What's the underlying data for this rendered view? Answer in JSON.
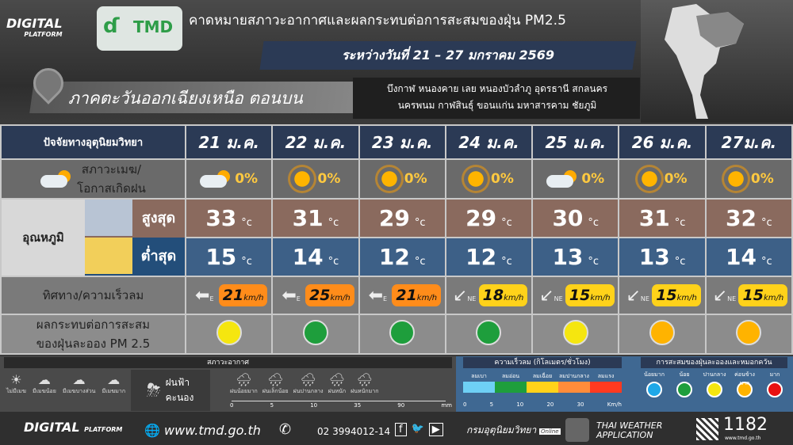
{
  "header": {
    "brand": "DIGITAL",
    "brand_sub": "PLATFORM",
    "logo_text": "TMD",
    "title": "คาดหมายสภาวะอากาศและผลกระทบต่อการสะสมของฝุ่น PM2.5",
    "date_range": "ระหว่างวันที่ 21 – 27 มกราคม 2569",
    "region": "ภาคตะวันออกเฉียงเหนือ ตอนบน",
    "provinces_line1": "บึงกาฬ หนองคาย เลย หนองบัวลำภู อุดรธานี สกลนคร",
    "provinces_line2": "นครพนม กาฬสินธุ์ ขอนแก่น มหาสารคาม  ชัยภูมิ"
  },
  "table": {
    "factor_label": "ปัจจัยทางอุตุนิยมวิทยา",
    "sky_label_1": "สภาวะเมฆ/",
    "sky_label_2": "โอกาสเกิดฝน",
    "temp_label": "อุณหภูมิ",
    "max_label": "สูงสุด",
    "min_label": "ต่ำสุด",
    "wind_label": "ทิศทาง/ความเร็วลม",
    "pm_label_1": "ผลกระทบต่อการสะสม",
    "pm_label_2": "ของฝุ่นละออง PM 2.5",
    "temp_unit": "°c",
    "wind_unit": "km/h",
    "days": [
      {
        "date": "21 ม.ค.",
        "sky": "partly-cloudy-icon",
        "rain": "0%",
        "max": "33",
        "min": "15",
        "wind_dir": "E",
        "wind_speed": "21",
        "wind_color": "#ff8c1a",
        "pm_color": "#f5e60f"
      },
      {
        "date": "22 ม.ค.",
        "sky": "sun-icon",
        "rain": "0%",
        "max": "31",
        "min": "14",
        "wind_dir": "E",
        "wind_speed": "25",
        "wind_color": "#ff8c1a",
        "pm_color": "#1e9e3c"
      },
      {
        "date": "23 ม.ค.",
        "sky": "sun-icon",
        "rain": "0%",
        "max": "29",
        "min": "12",
        "wind_dir": "E",
        "wind_speed": "21",
        "wind_color": "#ff8c1a",
        "pm_color": "#1e9e3c"
      },
      {
        "date": "24 ม.ค.",
        "sky": "sun-icon",
        "rain": "0%",
        "max": "29",
        "min": "12",
        "wind_dir": "NE",
        "wind_speed": "18",
        "wind_color": "#ffd21a",
        "pm_color": "#1e9e3c"
      },
      {
        "date": "25 ม.ค.",
        "sky": "partly-cloudy-icon",
        "rain": "0%",
        "max": "30",
        "min": "13",
        "wind_dir": "NE",
        "wind_speed": "15",
        "wind_color": "#ffd21a",
        "pm_color": "#f5e60f"
      },
      {
        "date": "26 ม.ค.",
        "sky": "sun-icon",
        "rain": "0%",
        "max": "31",
        "min": "13",
        "wind_dir": "NE",
        "wind_speed": "15",
        "wind_color": "#ffd21a",
        "pm_color": "#ffb300"
      },
      {
        "date": "27ม.ค.",
        "sky": "sun-icon",
        "rain": "0%",
        "max": "32",
        "min": "14",
        "wind_dir": "NE",
        "wind_speed": "15",
        "wind_color": "#ffd21a",
        "pm_color": "#ffb300"
      }
    ]
  },
  "legend": {
    "weather_title": "สภาวะอากาศ",
    "sky": [
      "ไม่มีเมฆ",
      "มีเมฆน้อย",
      "มีเมฆบางส่วน",
      "มีเมฆมาก"
    ],
    "storm": "ฝนฟ้าคะนอง",
    "rain": [
      "ฝนน้อยมาก",
      "ฝนเล็กน้อย",
      "ฝนปานกลาง",
      "ฝนหนัก",
      "ฝนหนักมาก"
    ],
    "rain_ticks": [
      "0",
      "5",
      "10",
      "35",
      "90"
    ],
    "rain_unit": "mm",
    "wind_title": "ความเร็วลม (กิโลเมตร/ชั่วโมง)",
    "wind": [
      {
        "label": "ลมเบา",
        "color": "#6ed0f5"
      },
      {
        "label": "ลมอ่อน",
        "color": "#1e9e3c"
      },
      {
        "label": "ลมเฉื่อย",
        "color": "#ffd21a"
      },
      {
        "label": "ลมปานกลาง",
        "color": "#ff8c3a"
      },
      {
        "label": "ลมแรง",
        "color": "#ff3a20"
      }
    ],
    "wind_ticks": [
      "0",
      "5",
      "10",
      "20",
      "30"
    ],
    "wind_unit": "Km/h",
    "pm_title": "การสะสมของฝุ่นละอองและหมอกควัน",
    "pm": [
      {
        "label": "น้อยมาก",
        "color": "#1ea8e8"
      },
      {
        "label": "น้อย",
        "color": "#1e9e3c"
      },
      {
        "label": "ปานกลาง",
        "color": "#f5e60f"
      },
      {
        "label": "ค่อนข้างมาก",
        "color": "#ffb300"
      },
      {
        "label": "มาก",
        "color": "#e81010"
      }
    ]
  },
  "footer": {
    "brand": "DIGITAL",
    "brand_sub": "PLATFORM",
    "website": "www.tmd.go.th",
    "phone": "02 3994012-14",
    "dept": "กรมอุตุนิยมวิทยา",
    "dept_sub": "Online",
    "app_1": "THAI WEATHER",
    "app_2": "APPLICATION",
    "hotline": "1182",
    "hotline_site": "www.tmd.go.th",
    "overlay_labels": [
      "ฝนน้อยมาก",
      "ฝนเล็กน้อย",
      "ฝนปานกลาง",
      "ฝนหนัก",
      "ฝนหนักมาก"
    ]
  }
}
